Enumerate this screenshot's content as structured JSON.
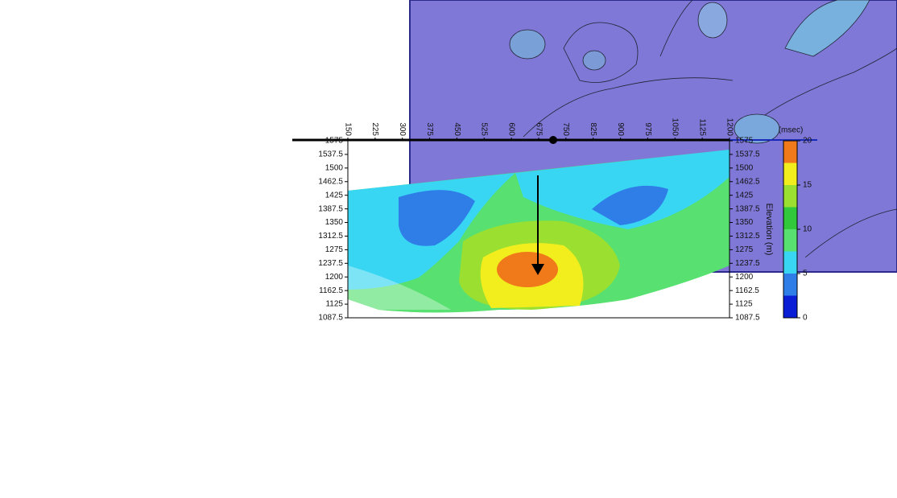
{
  "chart_data": {
    "type": "contour",
    "xticks": [
      150,
      225,
      300,
      375,
      450,
      525,
      600,
      675,
      750,
      825,
      900,
      975,
      1050,
      1125,
      1200
    ],
    "xlim": [
      150,
      1200
    ],
    "yticks": [
      1575,
      1537.5,
      1500,
      1462.5,
      1425,
      1387.5,
      1350,
      1312.5,
      1275,
      1237.5,
      1200,
      1162.5,
      1125,
      1087.5
    ],
    "ylim": [
      1087.5,
      1575
    ],
    "y_label": "Elevation (m)",
    "colorbar": {
      "label": "(msec)",
      "lim": [
        0,
        20
      ],
      "ticks": [
        0,
        5,
        10,
        15,
        20
      ],
      "levels": [
        0,
        2.5,
        5,
        7.5,
        10,
        12.5,
        15,
        17.5,
        20
      ],
      "colors": [
        "#0a1ed6",
        "#2f7ee8",
        "#38d6f2",
        "#58e070",
        "#32c83c",
        "#9be030",
        "#f2ee1e",
        "#f07a1a"
      ]
    }
  }
}
